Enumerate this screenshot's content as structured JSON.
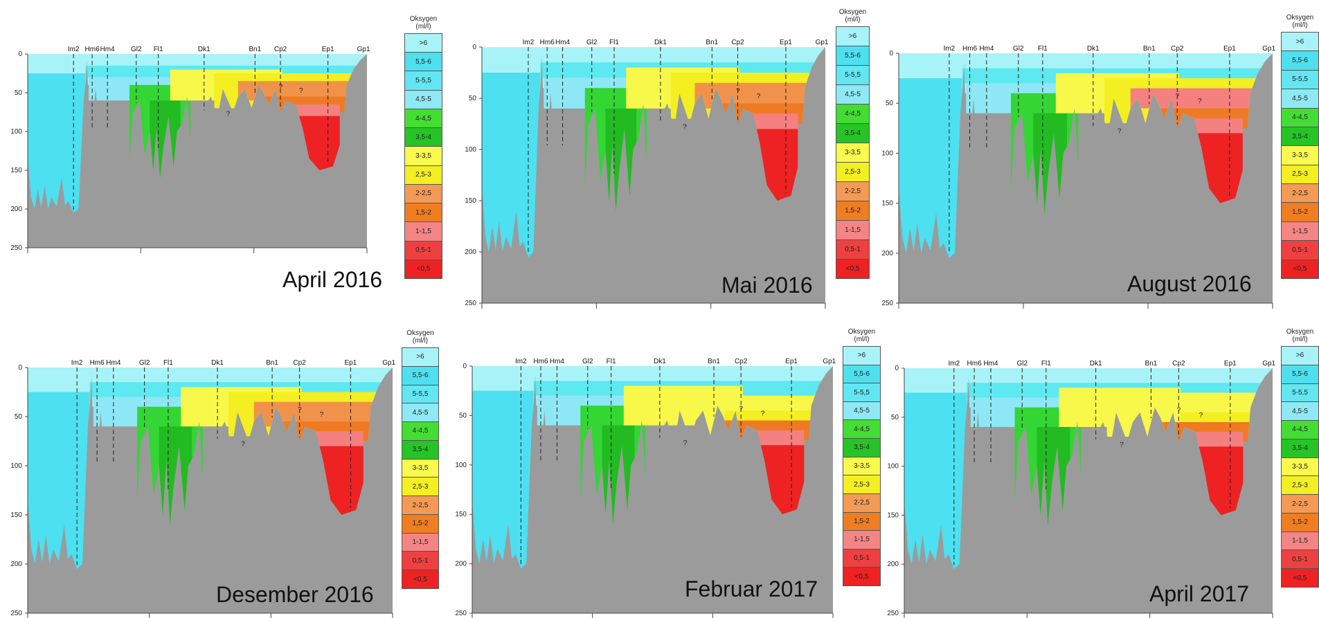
{
  "colors": {
    "bg": "#9b9b9b",
    "gt6": "#a8f3f8",
    "c55_6": "#4de0f0",
    "c5_55": "#5ee8f0",
    "c45_5": "#8de7f5",
    "c4_45": "#33d633",
    "c35_4": "#22bb22",
    "c3_35": "#f8f84a",
    "c25_3": "#f3ef21",
    "c2_25": "#f0924a",
    "c15_2": "#ef7a24",
    "c1_15": "#f58080",
    "c05_1": "#ef3a3a",
    "clt05": "#ee2222"
  },
  "legend": {
    "title_line1": "Oksygen",
    "title_line2": "(ml/l)",
    "items": [
      {
        "label": ">6",
        "color": "#a8f3f8"
      },
      {
        "label": "5,5-6",
        "color": "#4ee0ee"
      },
      {
        "label": "5-5,5",
        "color": "#62e6f2"
      },
      {
        "label": "4,5-5",
        "color": "#8ee9f4"
      },
      {
        "label": "4-4,5",
        "color": "#44dd33"
      },
      {
        "label": "3,5-4",
        "color": "#26c426"
      },
      {
        "label": "3-3,5",
        "color": "#f9f94e"
      },
      {
        "label": "2,5-3",
        "color": "#f3ef22"
      },
      {
        "label": "2-2,5",
        "color": "#f39a55"
      },
      {
        "label": "1,5-2",
        "color": "#ef7d22"
      },
      {
        "label": "1-1,5",
        "color": "#f58585"
      },
      {
        "label": "0,5-1",
        "color": "#ee4040"
      },
      {
        "label": "<0,5",
        "color": "#ee2222"
      }
    ]
  },
  "stations": [
    "Im2",
    "Hm6",
    "Hm4",
    "Gl2",
    "Fl1",
    "Dk1",
    "Bn1",
    "Cp2",
    "Ep1",
    "Gp1"
  ],
  "depth_ticks": [
    "0",
    "50",
    "100",
    "150",
    "200",
    "250"
  ],
  "question_mark": "?",
  "panels": [
    {
      "title": "April 2016"
    },
    {
      "title": "Mai 2016"
    },
    {
      "title": "August 2016"
    },
    {
      "title": "Desember 2016"
    },
    {
      "title": "Februar 2017"
    },
    {
      "title": "April 2017"
    }
  ]
}
